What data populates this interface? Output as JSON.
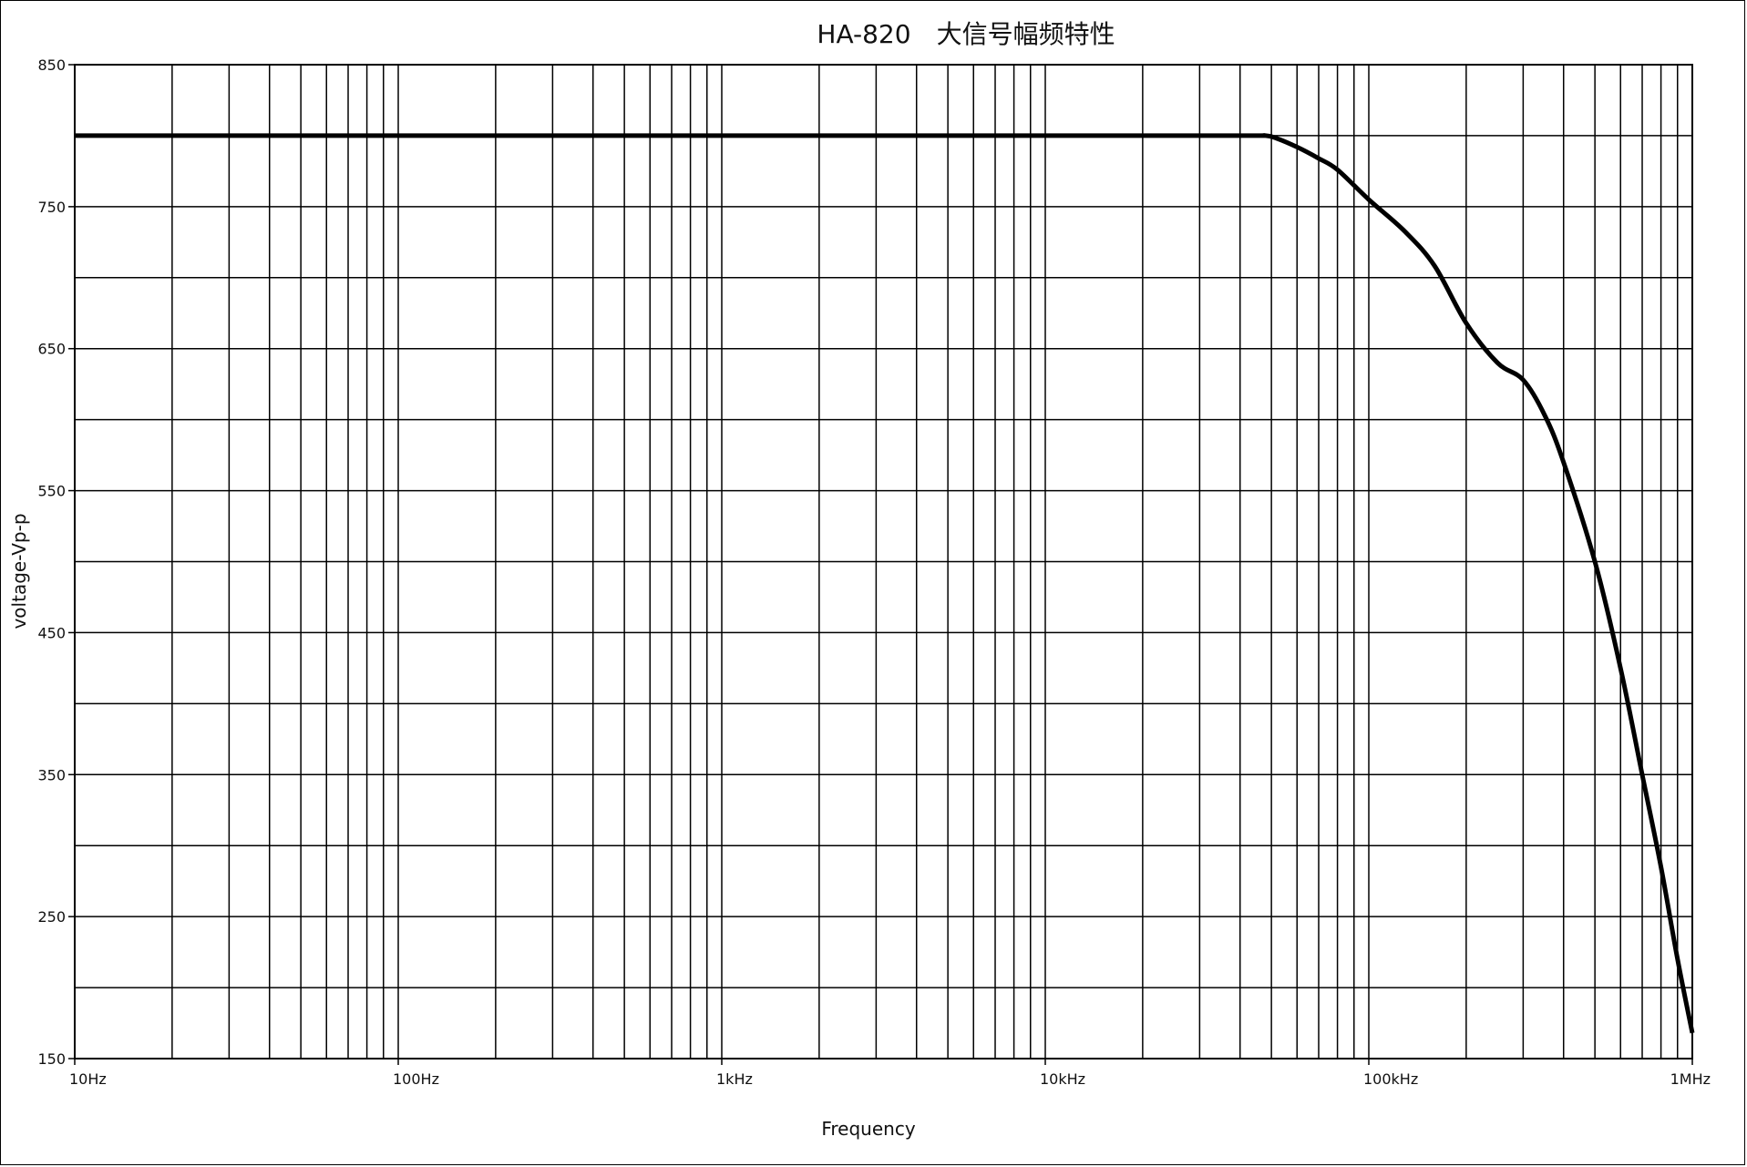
{
  "chart_data": {
    "type": "line",
    "title": "HA-820　大信号幅频特性",
    "xlabel": "Frequency",
    "ylabel": "voltage-Vp-p",
    "x_scale": "log",
    "xlim": [
      10,
      1000000
    ],
    "ylim": [
      150,
      850
    ],
    "x_ticks": [
      {
        "value": 10,
        "label": "10Hz"
      },
      {
        "value": 100,
        "label": "100Hz"
      },
      {
        "value": 1000,
        "label": "1kHz"
      },
      {
        "value": 10000,
        "label": "10kHz"
      },
      {
        "value": 100000,
        "label": "100kHz"
      },
      {
        "value": 1000000,
        "label": "1MHz"
      }
    ],
    "y_ticks": [
      {
        "value": 150,
        "label": "150"
      },
      {
        "value": 250,
        "label": "250"
      },
      {
        "value": 350,
        "label": "350"
      },
      {
        "value": 450,
        "label": "450"
      },
      {
        "value": 550,
        "label": "550"
      },
      {
        "value": 650,
        "label": "650"
      },
      {
        "value": 750,
        "label": "750"
      },
      {
        "value": 850,
        "label": "850"
      }
    ],
    "grid": true,
    "series": [
      {
        "color": "#000000",
        "x": [
          10,
          100,
          1000,
          10000,
          40000,
          48000,
          52000,
          60000,
          70000,
          80000,
          100000,
          130000,
          160000,
          200000,
          250000,
          300000,
          350000,
          400000,
          500000,
          600000,
          700000,
          800000,
          900000,
          1000000
        ],
        "y": [
          800,
          800,
          800,
          800,
          800,
          800,
          798,
          792,
          784,
          776,
          755,
          732,
          708,
          668,
          640,
          628,
          603,
          570,
          500,
          425,
          350,
          285,
          220,
          168
        ]
      }
    ]
  }
}
